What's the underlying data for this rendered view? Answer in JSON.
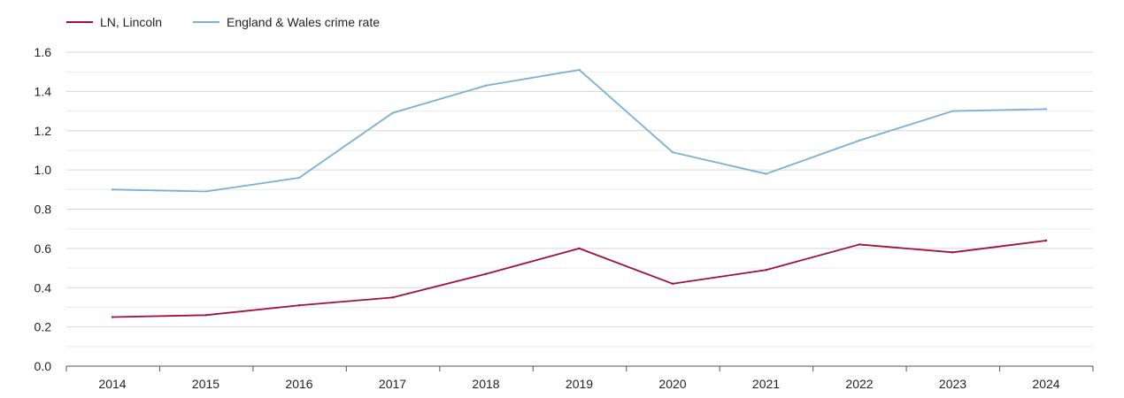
{
  "chart_data": {
    "type": "line",
    "title": "",
    "xlabel": "",
    "ylabel": "",
    "categories": [
      "2014",
      "2015",
      "2016",
      "2017",
      "2018",
      "2019",
      "2020",
      "2021",
      "2022",
      "2023",
      "2024"
    ],
    "series": [
      {
        "name": "LN, Lincoln",
        "color": "#a0103a",
        "values": [
          0.25,
          0.26,
          0.31,
          0.35,
          0.47,
          0.6,
          0.42,
          0.49,
          0.62,
          0.58,
          0.64
        ]
      },
      {
        "name": "England & Wales crime rate",
        "color": "#7bafd4",
        "values": [
          0.9,
          0.89,
          0.96,
          1.29,
          1.43,
          1.51,
          1.09,
          0.98,
          1.15,
          1.3,
          1.31
        ]
      }
    ],
    "ylim": [
      0,
      1.6
    ],
    "yticks": [
      "0.0",
      "0.2",
      "0.4",
      "0.6",
      "0.8",
      "1.0",
      "1.2",
      "1.4",
      "1.6"
    ],
    "grid": true,
    "legend_position": "top-left"
  }
}
